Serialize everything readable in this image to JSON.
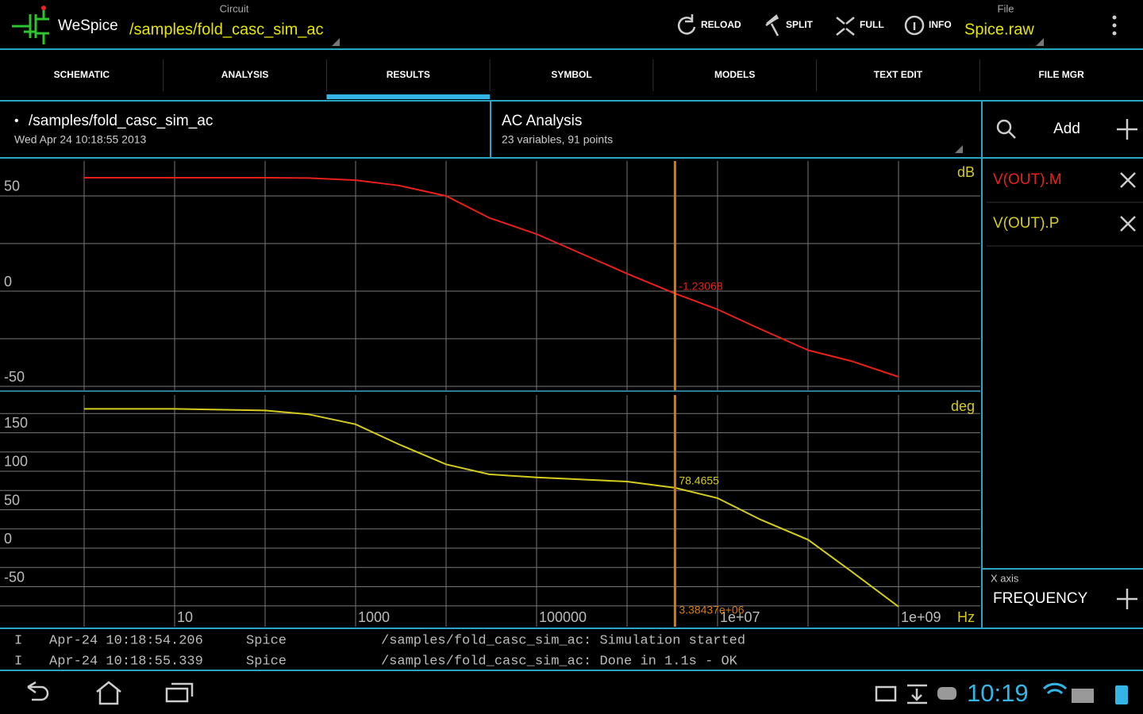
{
  "header": {
    "app": "WeSpice",
    "circuit_label": "Circuit",
    "circuit": "/samples/fold_casc_sim_ac",
    "buttons": [
      "RELOAD",
      "SPLIT",
      "FULL",
      "INFO"
    ],
    "file_label": "File",
    "file": "Spice.raw"
  },
  "tabs": [
    {
      "label": "SCHEMATIC"
    },
    {
      "label": "ANALYSIS"
    },
    {
      "label": "RESULTS",
      "selected": true
    },
    {
      "label": "SYMBOL"
    },
    {
      "label": "MODELS"
    },
    {
      "label": "TEXT EDIT"
    },
    {
      "label": "FILE MGR"
    }
  ],
  "info": {
    "path": "/samples/fold_casc_sim_ac",
    "date": "Wed Apr 24 10:18:55 2013",
    "analysis": "AC Analysis",
    "summary": "23 variables, 91 points"
  },
  "side": {
    "add": "Add",
    "x_axis_label": "X axis",
    "x_axis": "FREQUENCY"
  },
  "chart_data": [
    {
      "type": "line",
      "y_unit": "dB",
      "xlog": true,
      "xlim": [
        0.1175,
        8010000000
      ],
      "ylim": [
        -52.08,
        69.58
      ],
      "x": [
        1,
        10,
        100,
        300,
        1000,
        3000,
        10000,
        30000,
        100000,
        1000000,
        3384370,
        10000000,
        30000000,
        100000000,
        300000000,
        1000000000
      ],
      "series": [
        {
          "name": "V(OUT).M",
          "color": "#e8201c",
          "values": [
            59.6,
            59.6,
            59.6,
            59.4,
            58.3,
            55.5,
            50,
            38.5,
            30,
            9.2,
            -1.2,
            -9.6,
            -20,
            -31,
            -36.7,
            -45
          ]
        }
      ],
      "yticks": [
        -50,
        0,
        50
      ],
      "ygrid": [
        -25,
        25
      ],
      "xgrid": [
        1,
        10,
        100,
        1000,
        10000,
        100000,
        1000000,
        10000000,
        100000000,
        1000000000
      ],
      "cursor_x": 3384370,
      "cursor_value": -1.23068
    },
    {
      "type": "line",
      "y_unit": "deg",
      "x_unit": "Hz",
      "xlog": true,
      "xlim": [
        0.1175,
        8010000000
      ],
      "ylim": [
        -102.06,
        202.06
      ],
      "x": [
        1,
        10,
        100,
        300,
        1000,
        3000,
        10000,
        30000,
        100000,
        1000000,
        3384370,
        10000000,
        30000000,
        100000000,
        300000000,
        1000000000
      ],
      "series": [
        {
          "name": "V(OUT).P",
          "color": "#d4cc1c",
          "values": [
            181,
            181,
            179,
            174,
            161,
            135,
            109,
            96,
            92,
            86.6,
            78.5,
            65,
            37,
            11,
            -30,
            -76
          ]
        }
      ],
      "yticks": [
        -50,
        0,
        50,
        100,
        150
      ],
      "ygrid": [
        -75,
        -25,
        25,
        75,
        125,
        175
      ],
      "xticks": [
        10,
        1000,
        100000,
        {
          "value": 10000000,
          "label": "1e+07"
        },
        {
          "value": 1000000000,
          "label": "1e+09"
        }
      ],
      "xgrid": [
        1,
        100,
        10000,
        1000000,
        100000000
      ],
      "cursor_x": {
        "value": 3384370,
        "label": "3.38437e+06"
      },
      "cursor_value": 78.4655
    }
  ],
  "log": {
    "rows": [
      [
        "I",
        "Apr-24 10:18:54.206",
        "Spice",
        "/samples/fold_casc_sim_ac: Simulation started"
      ],
      [
        "I",
        "Apr-24 10:18:55.339",
        "Spice",
        "/samples/fold_casc_sim_ac: Done in 1.1s - OK"
      ]
    ]
  },
  "status": {
    "time": "10:19"
  }
}
